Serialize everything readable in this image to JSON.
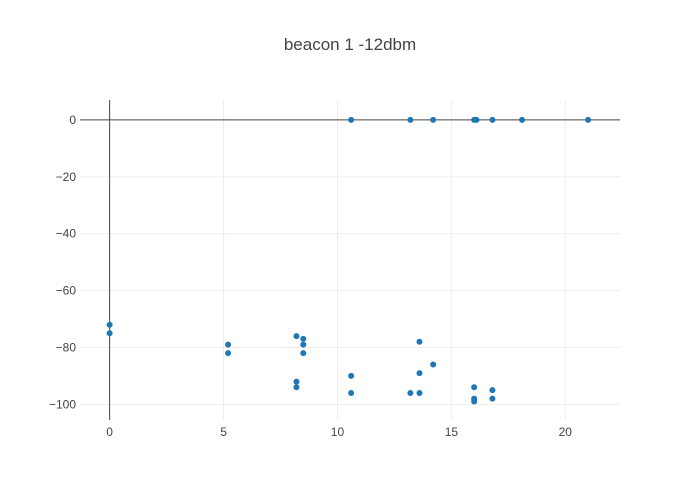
{
  "chart_data": {
    "type": "scatter",
    "title": "beacon 1 -12dbm",
    "xlabel": "",
    "ylabel": "",
    "xlim": [
      -1.3,
      22.4
    ],
    "ylim": [
      -105.5,
      7
    ],
    "x_ticks": [
      0,
      5,
      10,
      15,
      20
    ],
    "y_ticks": [
      0,
      -20,
      -40,
      -60,
      -80,
      -100
    ],
    "grid": true,
    "color": "#1f77b4",
    "points": [
      {
        "x": 0,
        "y": -72
      },
      {
        "x": 0,
        "y": -75
      },
      {
        "x": 5.2,
        "y": -79
      },
      {
        "x": 5.2,
        "y": -82
      },
      {
        "x": 8.2,
        "y": -76
      },
      {
        "x": 8.2,
        "y": -92
      },
      {
        "x": 8.2,
        "y": -94
      },
      {
        "x": 8.5,
        "y": -77
      },
      {
        "x": 8.5,
        "y": -79
      },
      {
        "x": 8.5,
        "y": -82
      },
      {
        "x": 10.6,
        "y": 0
      },
      {
        "x": 10.6,
        "y": -90
      },
      {
        "x": 10.6,
        "y": -96
      },
      {
        "x": 13.2,
        "y": 0
      },
      {
        "x": 13.2,
        "y": -96
      },
      {
        "x": 13.6,
        "y": -78
      },
      {
        "x": 13.6,
        "y": -89
      },
      {
        "x": 13.6,
        "y": -96
      },
      {
        "x": 14.2,
        "y": 0
      },
      {
        "x": 14.2,
        "y": -86
      },
      {
        "x": 16.0,
        "y": 0
      },
      {
        "x": 16.0,
        "y": -94
      },
      {
        "x": 16.0,
        "y": -98
      },
      {
        "x": 16.0,
        "y": -99
      },
      {
        "x": 16.1,
        "y": 0
      },
      {
        "x": 16.8,
        "y": 0
      },
      {
        "x": 16.8,
        "y": -95
      },
      {
        "x": 16.8,
        "y": -98
      },
      {
        "x": 18.1,
        "y": 0
      },
      {
        "x": 21.0,
        "y": 0
      }
    ]
  }
}
